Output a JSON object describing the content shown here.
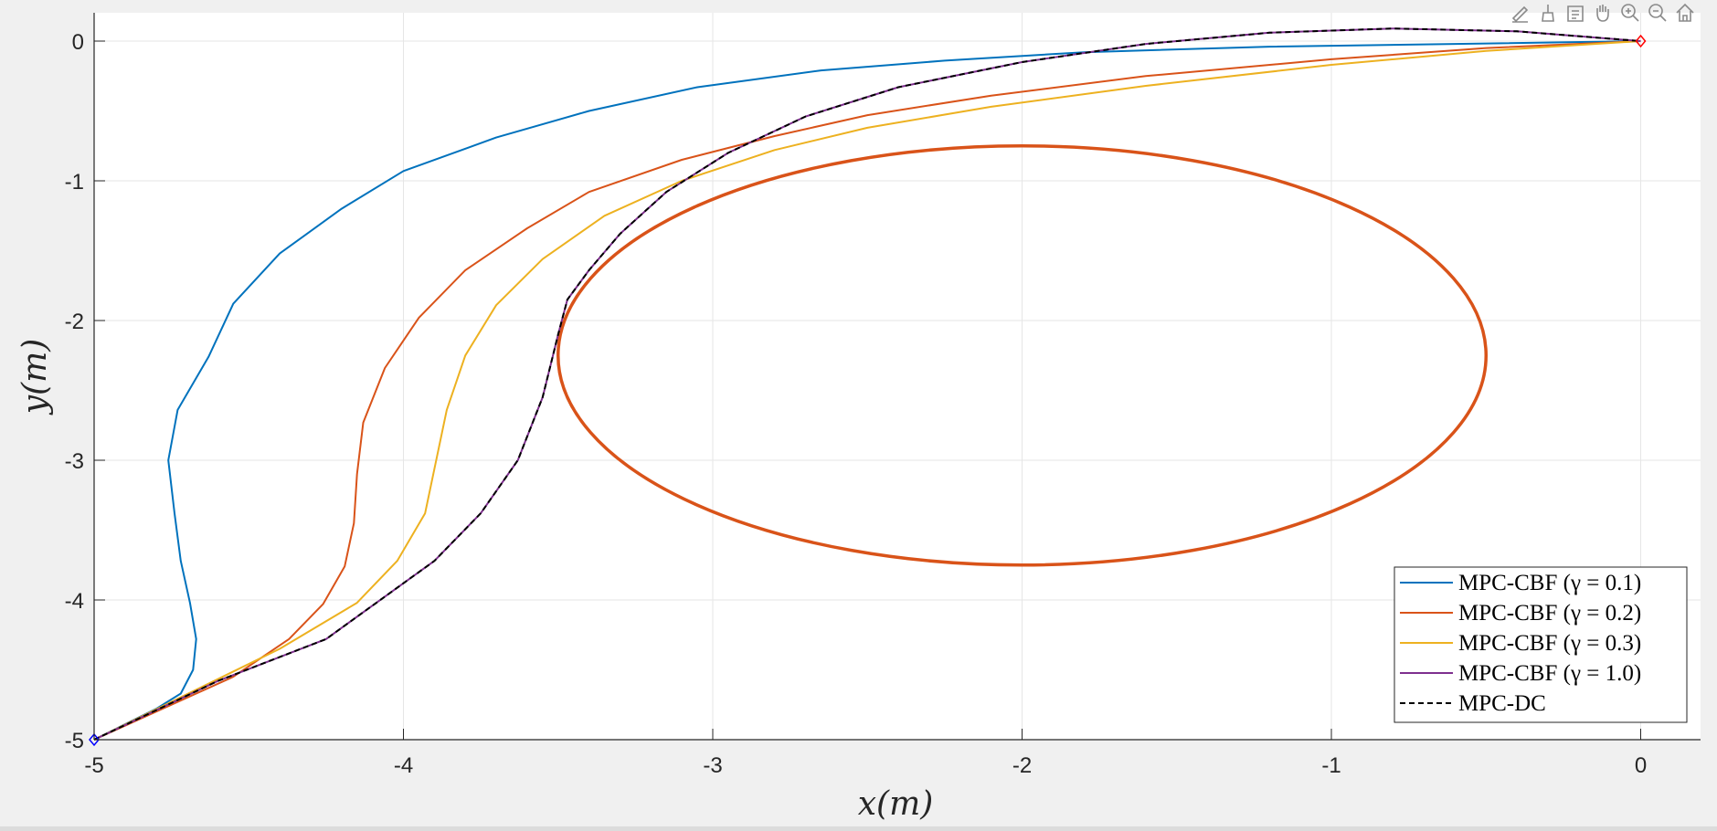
{
  "colors": {
    "blue": "#0072BD",
    "red": "#D95319",
    "yellow": "#EDB120",
    "purple": "#7E2F8E",
    "dashed": "#000000",
    "grid": "#e6e6e6",
    "axis": "#262626"
  },
  "toolbar": {
    "icons": [
      "edit-icon",
      "brush-icon",
      "datatips-icon",
      "pan-hand-icon",
      "zoom-in-icon",
      "zoom-out-icon",
      "home-icon"
    ]
  },
  "chart_data": {
    "type": "line",
    "title": "",
    "xlabel": "x(m)",
    "ylabel": "y(m)",
    "xlim": [
      -5,
      0.2
    ],
    "ylim": [
      -5,
      0.2
    ],
    "xticks": [
      -5,
      -4,
      -3,
      -2,
      -1,
      0
    ],
    "yticks": [
      -5,
      -4,
      -3,
      -2,
      -1,
      0
    ],
    "grid": true,
    "legend_position": "bottom-right",
    "start": {
      "x": -5,
      "y": -5
    },
    "goal": {
      "x": 0,
      "y": 0
    },
    "obstacle": {
      "type": "ellipse",
      "cx": -2,
      "cy": -2.25,
      "rx": 1.5,
      "ry": 1.5
    },
    "series": [
      {
        "name": "MPC-CBF (γ = 0.1)",
        "color": "#0072BD",
        "dash": false,
        "x": [
          -5,
          -4.8,
          -4.72,
          -4.68,
          -4.67,
          -4.69,
          -4.72,
          -4.74,
          -4.76,
          -4.76,
          -4.73,
          -4.63,
          -4.55,
          -4.4,
          -4.2,
          -4.0,
          -3.7,
          -3.4,
          -3.05,
          -2.65,
          -2.25,
          -1.8,
          -1.2,
          -0.6,
          0
        ],
        "y": [
          -5,
          -4.78,
          -4.67,
          -4.5,
          -4.28,
          -4.02,
          -3.72,
          -3.38,
          -3.0,
          -3.0,
          -2.64,
          -2.26,
          -1.88,
          -1.52,
          -1.2,
          -0.93,
          -0.69,
          -0.5,
          -0.33,
          -0.21,
          -0.14,
          -0.08,
          -0.04,
          -0.02,
          0
        ]
      },
      {
        "name": "MPC-CBF (γ = 0.2)",
        "color": "#D95319",
        "dash": false,
        "x": [
          -5,
          -4.55,
          -4.37,
          -4.26,
          -4.19,
          -4.16,
          -4.15,
          -4.13,
          -4.06,
          -3.95,
          -3.8,
          -3.6,
          -3.4,
          -3.1,
          -2.8,
          -2.5,
          -2.1,
          -1.6,
          -1.0,
          -0.5,
          0
        ],
        "y": [
          -5,
          -4.55,
          -4.28,
          -4.03,
          -3.76,
          -3.45,
          -3.1,
          -2.73,
          -2.34,
          -1.98,
          -1.64,
          -1.34,
          -1.08,
          -0.85,
          -0.68,
          -0.53,
          -0.39,
          -0.25,
          -0.13,
          -0.05,
          0
        ]
      },
      {
        "name": "MPC-CBF (γ = 0.3)",
        "color": "#EDB120",
        "dash": false,
        "x": [
          -5,
          -4.4,
          -4.15,
          -4.02,
          -3.93,
          -3.86,
          -3.8,
          -3.7,
          -3.55,
          -3.35,
          -3.1,
          -2.8,
          -2.5,
          -2.1,
          -1.6,
          -1.0,
          -0.5,
          0
        ],
        "y": [
          -5,
          -4.35,
          -4.02,
          -3.72,
          -3.38,
          -2.64,
          -2.25,
          -1.89,
          -1.56,
          -1.25,
          -1.0,
          -0.78,
          -0.62,
          -0.47,
          -0.32,
          -0.17,
          -0.07,
          0
        ]
      },
      {
        "name": "MPC-CBF (γ = 1.0)",
        "color": "#7E2F8E",
        "dash": false,
        "x": [
          -5,
          -4.6,
          -4.25,
          -3.9,
          -3.75,
          -3.63,
          -3.55,
          -3.5,
          -3.47,
          -3.4,
          -3.3,
          -3.15,
          -2.95,
          -2.7,
          -2.4,
          -2.0,
          -1.6,
          -1.2,
          -0.8,
          -0.4,
          0
        ],
        "y": [
          -5,
          -4.58,
          -4.28,
          -3.72,
          -3.38,
          -3.0,
          -2.55,
          -2.1,
          -1.85,
          -1.64,
          -1.38,
          -1.08,
          -0.8,
          -0.54,
          -0.33,
          -0.15,
          -0.02,
          0.06,
          0.09,
          0.07,
          0
        ]
      },
      {
        "name": "MPC-DC",
        "color": "#000000",
        "dash": true,
        "x": [
          -5,
          -4.6,
          -4.25,
          -3.9,
          -3.75,
          -3.63,
          -3.55,
          -3.5,
          -3.47,
          -3.4,
          -3.3,
          -3.15,
          -2.95,
          -2.7,
          -2.4,
          -2.0,
          -1.6,
          -1.2,
          -0.8,
          -0.4,
          0
        ],
        "y": [
          -5,
          -4.58,
          -4.28,
          -3.72,
          -3.38,
          -3.0,
          -2.55,
          -2.1,
          -1.85,
          -1.64,
          -1.38,
          -1.08,
          -0.8,
          -0.54,
          -0.33,
          -0.15,
          -0.02,
          0.06,
          0.09,
          0.07,
          0
        ]
      }
    ]
  }
}
